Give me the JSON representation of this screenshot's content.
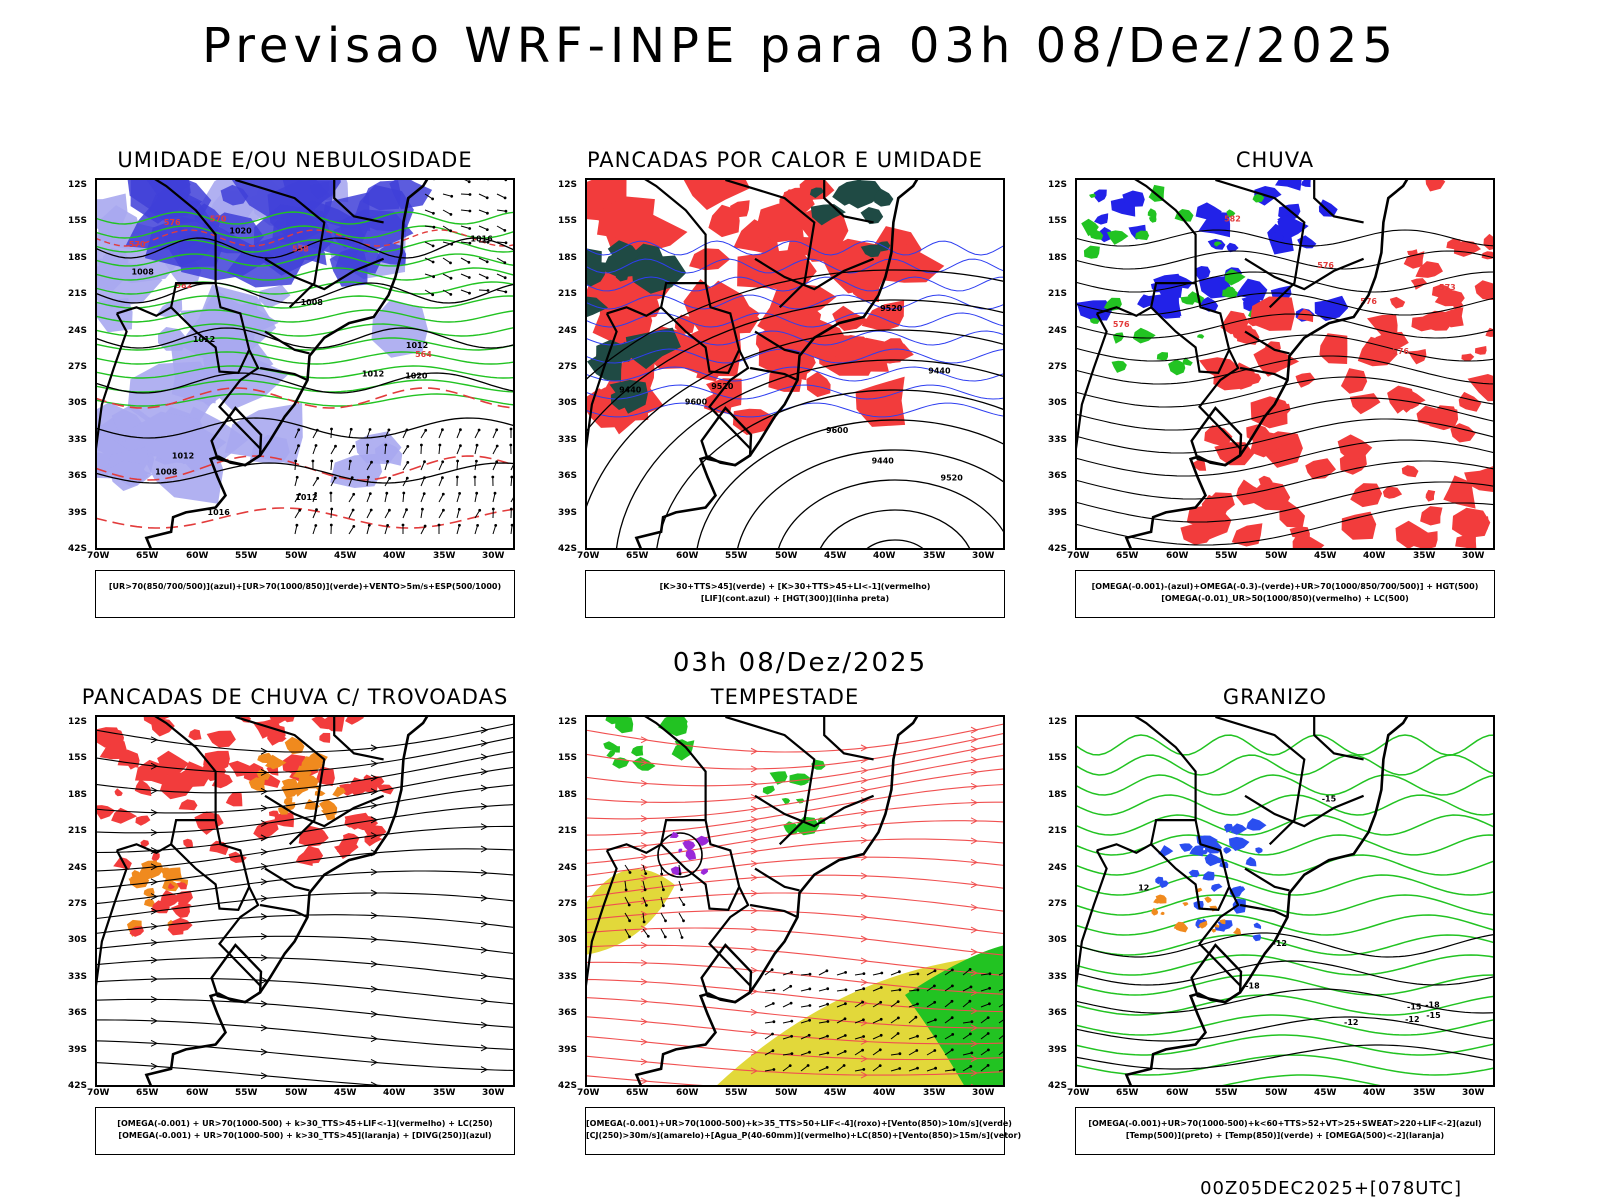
{
  "title": "Previsao WRF-INPE  para 03h 08/Dez/2025",
  "subtitle": "03h 08/Dez/2025",
  "footer": "00Z05DEC2025+[078UTC]",
  "lat_labels": [
    "12S",
    "15S",
    "18S",
    "21S",
    "24S",
    "27S",
    "30S",
    "33S",
    "36S",
    "39S",
    "42S"
  ],
  "lon_labels": [
    "70W",
    "65W",
    "60W",
    "55W",
    "50W",
    "45W",
    "40W",
    "35W",
    "30W"
  ],
  "panels": [
    {
      "title": "UMIDADE E/OU NEBULOSIDADE",
      "legend": [
        "[UR>70(850/700/500)](azul)+[UR>70(1000/850)](verde)+VENTO>5m/s+ESP(500/1000)"
      ],
      "contour_labels": [
        "1008",
        "1012",
        "1008",
        "1012",
        "1016",
        "1020",
        "1012",
        "1008",
        "1012",
        "1016",
        "1020",
        "1012",
        "570",
        "576",
        "582",
        "570",
        "564",
        "558"
      ],
      "colors": {
        "blue": "#3f3fd8",
        "lightblue": "#a9a9f0",
        "green": "#22c322",
        "red": "#e23b3b"
      }
    },
    {
      "title": "PANCADAS POR CALOR E UMIDADE",
      "legend": [
        "[K>30+TTS>45](verde) + [K>30+TTS>45+LI<-1](vermelho)",
        "[LIF](cont.azul) + [HGT(300)](linha preta)"
      ],
      "contour_labels": [
        "9600",
        "9520",
        "9440",
        "9600",
        "9520",
        "9440",
        "9520",
        "9440"
      ],
      "colors": {
        "red": "#f23c3c",
        "darkgreen": "#1f4a44",
        "blue": "#2e3ef0"
      }
    },
    {
      "title": "CHUVA",
      "legend": [
        "[OMEGA(-0.001)-(azul)+OMEGA(-0.3)-(verde)+UR>70(1000/850/700/500)] + HGT(500)",
        "[OMEGA(-0.01)_UR>50(1000/850)(vermelho) + LC(500)"
      ],
      "contour_labels": [
        "582",
        "576",
        "576",
        "576",
        "573",
        "576"
      ],
      "colors": {
        "red": "#f23c3c",
        "blue": "#2222e8",
        "green": "#22c322"
      }
    },
    {
      "title": "PANCADAS DE CHUVA C/ TROVOADAS",
      "legend": [
        "[OMEGA(-0.001) + UR>70(1000-500) + k>30_TTS>45+LIF<-1](vermelho) + LC(250)",
        "[OMEGA(-0.001) + UR>70(1000-500) + k>30_TTS>45](laranja) + [DIVG(250)](azul)"
      ],
      "contour_labels": [],
      "colors": {
        "red": "#f23c3c",
        "orange": "#f08a1e"
      }
    },
    {
      "title": "TEMPESTADE",
      "legend": [
        "[OMEGA(-0.001)+UR>70(1000-500)+k>35_TTS>50+LIF<-4](roxo)+[Vento(850)>10m/s](verde)",
        "[CJ(250)>30m/s](amarelo)+[Agua_P(40-60mm)](vermelho)+LC(850)+[Vento(850)>15m/s](vetor)"
      ],
      "contour_labels": [],
      "colors": {
        "red": "#f05050",
        "yellow": "#e2d83a",
        "green": "#22c322",
        "purple": "#9a28d8"
      }
    },
    {
      "title": "GRANIZO",
      "legend": [
        "[OMEGA(-0.001)+UR>70(1000-500)+k<60+TTS>52+VT>25+SWEAT>220+LIF<-2](azul)",
        "[Temp(500)](preto) + [Temp(850)](verde) + [OMEGA(500)<-2](laranja)"
      ],
      "contour_labels": [
        "-15",
        "-12",
        "-12",
        "-12",
        "-15",
        "-15",
        "-18",
        "-18",
        "12"
      ],
      "colors": {
        "green": "#22c322",
        "blue": "#2a4ef0",
        "orange": "#f08a1e"
      }
    }
  ]
}
